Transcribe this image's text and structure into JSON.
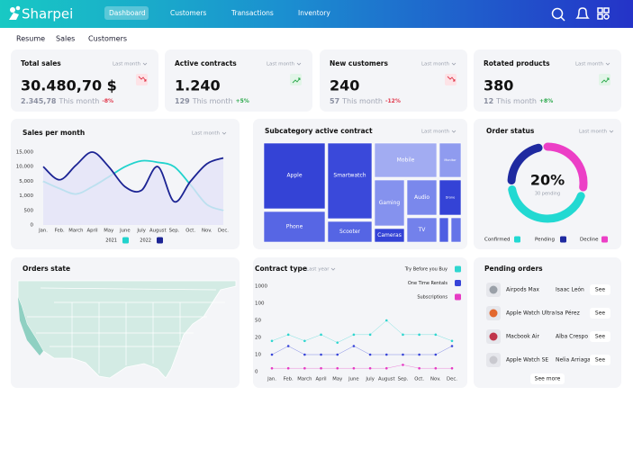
{
  "nav": {
    "brand": "Sharpei",
    "items": [
      "Dashboard",
      "Customers",
      "Transactions",
      "Inventory"
    ]
  },
  "tabs": [
    "Resume",
    "Sales",
    "Customers"
  ],
  "kpis": [
    {
      "title": "Total sales",
      "period": "Last month",
      "value": "30.480,70 $",
      "sub_value": "2.345,78",
      "sub_text": "This month",
      "change": "-8%",
      "trend": "down"
    },
    {
      "title": "Active contracts",
      "period": "Last month",
      "value": "1.240",
      "sub_value": "129",
      "sub_text": "This month",
      "change": "+5%",
      "trend": "up"
    },
    {
      "title": "New customers",
      "period": "Last month",
      "value": "240",
      "sub_value": "57",
      "sub_text": "This month",
      "change": "-12%",
      "trend": "down"
    },
    {
      "title": "Rotated products",
      "period": "Last month",
      "value": "380",
      "sub_value": "12",
      "sub_text": "This month",
      "change": "+8%",
      "trend": "up"
    }
  ],
  "chart_data": [
    {
      "type": "line",
      "title": "Sales per month",
      "period": "Last month",
      "area": true,
      "categories": [
        "Jan.",
        "Feb.",
        "March",
        "April",
        "May",
        "June",
        "July",
        "August",
        "Sep.",
        "Oct.",
        "Nov.",
        "Dec."
      ],
      "series": [
        {
          "name": "2021",
          "color": "#22d3cd",
          "values": [
            5000,
            3000,
            1500,
            3500,
            6500,
            10000,
            12000,
            11500,
            10000,
            4000,
            700,
            500
          ]
        },
        {
          "name": "2022",
          "color": "#1c2494",
          "values": [
            10000,
            5500,
            10500,
            15000,
            10000,
            3500,
            2500,
            10000,
            800,
            5000,
            11000,
            13000
          ]
        }
      ],
      "ylim": [
        0,
        15000
      ],
      "yticks": [
        0,
        500,
        {
          "value": 1000,
          "label": "1,000"
        },
        {
          "value": 5000,
          "label": "5,000"
        },
        {
          "value": 10000,
          "label": "10,000"
        },
        {
          "value": 15000,
          "label": "15,000"
        }
      ]
    },
    {
      "type": "line",
      "title": "Contract type",
      "period": "Last year",
      "markers": true,
      "categories": [
        "Jan.",
        "Feb.",
        "March",
        "April",
        "May",
        "June",
        "July",
        "August",
        "Sep.",
        "Oct.",
        "Nov.",
        "Dec."
      ],
      "series": [
        {
          "name": "Try Before you Buy",
          "color": "#2fd6cf",
          "values": [
            18,
            25,
            18,
            25,
            17,
            25,
            25,
            50,
            25,
            25,
            25,
            18
          ]
        },
        {
          "name": "One Time Rentals",
          "color": "#3744d8",
          "values": [
            10,
            15,
            10,
            10,
            10,
            15,
            10,
            10,
            10,
            10,
            10,
            15
          ]
        },
        {
          "name": "Subscriptions",
          "color": "#e63cc4",
          "values": [
            2,
            2,
            2,
            2,
            2,
            2,
            2,
            2,
            4,
            2,
            2,
            2
          ]
        }
      ],
      "ylim": [
        0,
        1000
      ],
      "yticks": [
        0,
        10,
        20,
        50,
        100,
        1000
      ]
    },
    {
      "type": "pie",
      "title": "Order status",
      "period": "Last month",
      "center_value": "20%",
      "center_label": "30 pending",
      "categories": [
        "Confirmed",
        "Pending",
        "Decline"
      ],
      "values": [
        41,
        20,
        27
      ],
      "colors": [
        "#22d9d2",
        "#1f2aa0",
        "#ec3fc6"
      ]
    }
  ],
  "treemap": {
    "title": "Subcategory active contract",
    "period": "Last month",
    "cells": [
      {
        "label": "Apple",
        "color": "#3443d6"
      },
      {
        "label": "Phone",
        "color": "#5766e4"
      },
      {
        "label": "Smartwatch",
        "color": "#3a49da"
      },
      {
        "label": "Scooter",
        "color": "#5565e4"
      },
      {
        "label": "Mobile",
        "color": "#a2acf2"
      },
      {
        "label": "Monitor",
        "color": "#8f9bef"
      },
      {
        "label": "Gaming",
        "color": "#8592ee"
      },
      {
        "label": "Audio",
        "color": "#7a88ec"
      },
      {
        "label": "Drone",
        "color": "#3443d6"
      },
      {
        "label": "Cameras",
        "color": "#3443d6"
      },
      {
        "label": "TV",
        "color": "#7381eb"
      },
      {
        "color": "#4f5fe2"
      },
      {
        "color": "#6574e8"
      }
    ]
  },
  "orders_state": {
    "title": "Orders state"
  },
  "pending_orders": {
    "title": "Pending orders",
    "items": [
      {
        "product": "Airpods Max",
        "customer": "Isaac León",
        "action": "See"
      },
      {
        "product": "Apple Watch Ultra",
        "customer": "Isa Pérez",
        "action": "See"
      },
      {
        "product": "Macbook  Air",
        "customer": "Alba Crespo",
        "action": "See"
      },
      {
        "product": "Apple Watch  SE",
        "customer": "Nelia Arriaga",
        "action": "See"
      }
    ],
    "more": "See more"
  }
}
